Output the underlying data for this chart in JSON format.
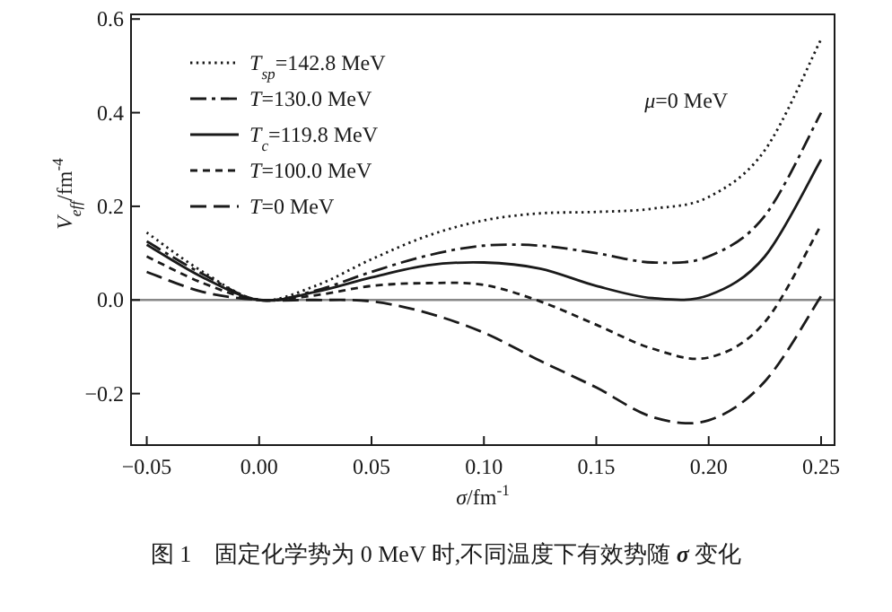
{
  "chart_data": {
    "type": "line",
    "xlabel": "*σ*/fm$^{-1}$",
    "ylabel": "*V*$_{eff}$/fm$^{-4}$",
    "x": [
      -0.05,
      -0.025,
      0,
      0.025,
      0.05,
      0.075,
      0.1,
      0.125,
      0.15,
      0.175,
      0.2,
      0.225,
      0.25
    ],
    "series": [
      {
        "name": "*T*$_{sp}$=142.8 MeV",
        "color": "#1a1a1a",
        "line_style": "dotted",
        "values": [
          0.144,
          0.06,
          0,
          0.03,
          0.087,
          0.137,
          0.17,
          0.185,
          0.188,
          0.195,
          0.22,
          0.32,
          0.557
        ]
      },
      {
        "name": "*T*=130.0 MeV",
        "color": "#1a1a1a",
        "line_style": "dashdot",
        "values": [
          0.125,
          0.055,
          0,
          0.02,
          0.06,
          0.095,
          0.116,
          0.116,
          0.1,
          0.08,
          0.093,
          0.18,
          0.4
        ]
      },
      {
        "name": "*T*$_{c}$=119.8 MeV",
        "color": "#1a1a1a",
        "line_style": "solid",
        "values": [
          0.118,
          0.048,
          0,
          0.017,
          0.048,
          0.074,
          0.08,
          0.067,
          0.03,
          0.004,
          0.01,
          0.093,
          0.3
        ]
      },
      {
        "name": "*T*=100.0 MeV",
        "color": "#1a1a1a",
        "line_style": "dashed",
        "values": [
          0.093,
          0.036,
          0,
          0.01,
          0.03,
          0.036,
          0.032,
          -0.003,
          -0.053,
          -0.104,
          -0.123,
          -0.047,
          0.16
        ]
      },
      {
        "name": "*T*=0 MeV",
        "color": "#1a1a1a",
        "line_style": "longdash",
        "values": [
          0.06,
          0.017,
          0,
          0,
          -0.003,
          -0.028,
          -0.07,
          -0.13,
          -0.187,
          -0.25,
          -0.257,
          -0.174,
          0.008
        ]
      }
    ],
    "xlim": [
      -0.057,
      0.256
    ],
    "ylim": [
      -0.31,
      0.61
    ],
    "xticks": [
      {
        "value": -0.05,
        "label": "−0.05"
      },
      {
        "value": 0,
        "label": "0.00"
      },
      0.05,
      {
        "value": 0.1,
        "label": "0.10"
      },
      0.15,
      {
        "value": 0.2,
        "label": "0.20"
      },
      0.25
    ],
    "yticks": [
      {
        "value": -0.2,
        "label": "−0.2"
      },
      {
        "value": 0,
        "label": "0.0"
      },
      0.2,
      0.4,
      0.6
    ],
    "ref_lines": [
      {
        "axis": "y",
        "value": 0,
        "color": "#888888"
      }
    ],
    "legend": "top left",
    "grid": false,
    "annotations": [
      "*μ*=0 MeV",
      "图 1　固定化学势为 0 MeV 时,不同温度下有效势随 **σ** 变化"
    ]
  }
}
